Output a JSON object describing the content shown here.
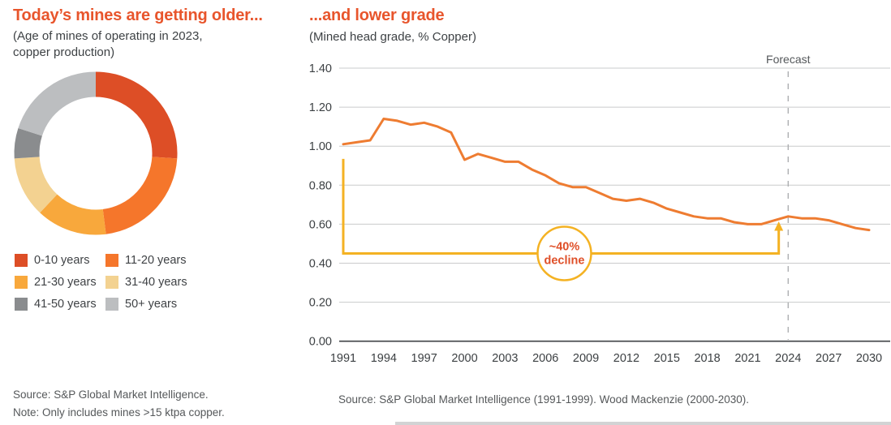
{
  "colors": {
    "accent_title": "#e8552c",
    "line_orange": "#ee7c31",
    "bracket_yellow": "#f4b223",
    "annotation_text": "#df4f28",
    "gridline": "#cacbcc",
    "axis_line": "#3f4245",
    "tick_text": "#3c4043",
    "forecast_dash": "#aeb0b2",
    "forecast_text": "#55585b",
    "source_text": "#55585a"
  },
  "left_panel": {
    "title": "Today’s mines are getting older...",
    "subtitle_line1": "(Age of mines of operating in 2023,",
    "subtitle_line2": "copper production)",
    "source": "Source: S&P Global Market Intelligence.",
    "note": "Note: Only includes mines >15 ktpa copper."
  },
  "right_panel": {
    "title": "...and lower grade",
    "subtitle": "(Mined head grade, % Copper)",
    "forecast_label": "Forecast",
    "annotation_line1": "~40%",
    "annotation_line2": "decline",
    "source": "Source: S&P Global Market Intelligence (1991-1999). Wood Mackenzie (2000-2030)."
  },
  "chart_data": [
    {
      "type": "pie",
      "donut": true,
      "title": "Age of mines of operating in 2023, copper production",
      "categories": [
        "0-10 years",
        "11-20 years",
        "21-30 years",
        "31-40 years",
        "41-50 years",
        "50+ years"
      ],
      "values": [
        26,
        22,
        14,
        12,
        6,
        20
      ],
      "colors": [
        "#dd4e26",
        "#f5762b",
        "#f8a83c",
        "#f3d291",
        "#8a8c8e",
        "#bcbec0"
      ],
      "legend_position": "bottom"
    },
    {
      "type": "line",
      "title": "Mined head grade, % Copper",
      "xlabel": "",
      "ylabel": "Mined head grade, % Copper",
      "ylim": [
        0.0,
        1.4
      ],
      "grid": true,
      "x": [
        1991,
        1992,
        1993,
        1994,
        1995,
        1996,
        1997,
        1998,
        1999,
        2000,
        2001,
        2002,
        2003,
        2004,
        2005,
        2006,
        2007,
        2008,
        2009,
        2010,
        2011,
        2012,
        2013,
        2014,
        2015,
        2016,
        2017,
        2018,
        2019,
        2020,
        2021,
        2022,
        2023,
        2024,
        2025,
        2026,
        2027,
        2028,
        2029,
        2030
      ],
      "values": [
        1.01,
        1.02,
        1.03,
        1.14,
        1.13,
        1.11,
        1.12,
        1.1,
        1.07,
        0.93,
        0.96,
        0.94,
        0.92,
        0.92,
        0.88,
        0.85,
        0.81,
        0.79,
        0.79,
        0.76,
        0.73,
        0.72,
        0.73,
        0.71,
        0.68,
        0.66,
        0.64,
        0.63,
        0.63,
        0.61,
        0.6,
        0.6,
        0.62,
        0.64,
        0.63,
        0.63,
        0.62,
        0.6,
        0.58,
        0.57
      ],
      "ytick_values": [
        1.4,
        1.2,
        1.0,
        0.8,
        0.6,
        0.4,
        0.2,
        0.0
      ],
      "ytick_labels": [
        "1.40",
        "1.20",
        "1.00",
        "0.80",
        "0.60",
        "0.40",
        "0.20",
        "0.00"
      ],
      "xtick_labels": [
        1991,
        1994,
        1997,
        2000,
        2003,
        2006,
        2009,
        2012,
        2015,
        2018,
        2021,
        2024,
        2027,
        2030
      ],
      "forecast_start_year": 2024,
      "decline_bracket": {
        "from_year": 1991,
        "to_year": 2023.3,
        "level": 0.45,
        "start_top_value": 0.935,
        "arrow_tip_value": 0.61,
        "circle_center_year": 2007.4
      }
    }
  ]
}
